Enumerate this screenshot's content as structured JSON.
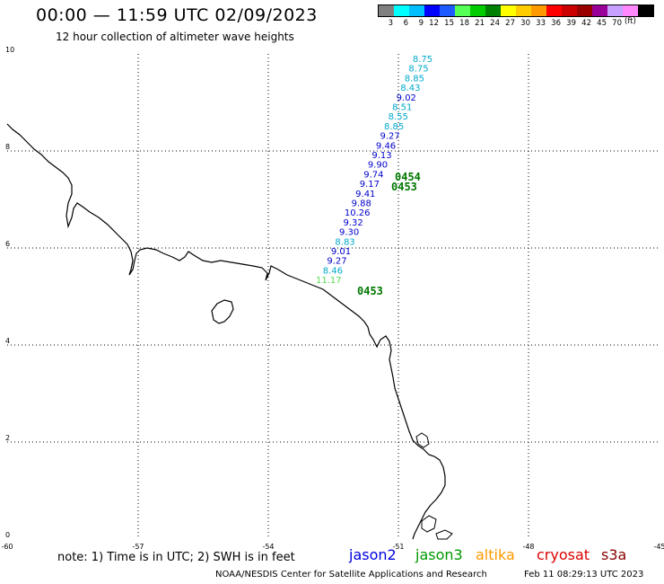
{
  "header": {
    "title": "00:00 — 11:59 UTC 02/09/2023",
    "subtitle": "12 hour collection of altimeter wave heights"
  },
  "legend": {
    "colors": [
      "#808080",
      "#00ffff",
      "#00bfff",
      "#0000ff",
      "#1e5bff",
      "#55ff55",
      "#00cc00",
      "#008000",
      "#ffff00",
      "#ffcc00",
      "#ff9900",
      "#ff0000",
      "#cc0000",
      "#990000",
      "#990099",
      "#c8a0ff",
      "#ff88ff",
      "#000000"
    ],
    "labels": [
      "3",
      "6",
      "9",
      "12",
      "15",
      "18",
      "21",
      "24",
      "27",
      "30",
      "33",
      "36",
      "39",
      "42",
      "45",
      "70"
    ],
    "unit": "(ft)"
  },
  "map": {
    "y_ticks": [
      "10",
      "8",
      "6",
      "4",
      "2",
      "0"
    ],
    "x_ticks": [
      "-60",
      "-57",
      "-54",
      "-51",
      "-48",
      "-45"
    ]
  },
  "observations": [
    {
      "value": "8.75",
      "color": "#00aacc"
    },
    {
      "value": "8.75",
      "color": "#00aacc"
    },
    {
      "value": "8.85",
      "color": "#00aacc"
    },
    {
      "value": "8.43",
      "color": "#00aacc"
    },
    {
      "value": "9.02",
      "color": "#0000cc"
    },
    {
      "value": "8.51",
      "color": "#00aacc"
    },
    {
      "value": "8.55",
      "color": "#00aacc"
    },
    {
      "value": "8.85",
      "color": "#00aacc"
    },
    {
      "value": "9.27",
      "color": "#0000cc"
    },
    {
      "value": "9.46",
      "color": "#0000cc"
    },
    {
      "value": "9.13",
      "color": "#0000cc"
    },
    {
      "value": "9.90",
      "color": "#0000cc"
    },
    {
      "value": "9.74",
      "color": "#0000cc"
    },
    {
      "value": "9.17",
      "color": "#0000cc"
    },
    {
      "value": "9.41",
      "color": "#0000cc"
    },
    {
      "value": "9.88",
      "color": "#0000cc"
    },
    {
      "value": "10.26",
      "color": "#0000cc"
    },
    {
      "value": "9.32",
      "color": "#0000cc"
    },
    {
      "value": "9.30",
      "color": "#0000cc"
    },
    {
      "value": "8.83",
      "color": "#00aacc"
    },
    {
      "value": "9.01",
      "color": "#0000cc"
    },
    {
      "value": "9.27",
      "color": "#0000cc"
    },
    {
      "value": "8.46",
      "color": "#00aacc"
    },
    {
      "value": "11.17",
      "color": "#55dd55"
    }
  ],
  "time_labels": [
    "0454",
    "0453",
    "0453"
  ],
  "footer": {
    "note": "note:  1) Time is in UTC;  2) SWH is in feet",
    "satellites": [
      {
        "name": "jason2",
        "color": "#0000dd"
      },
      {
        "name": "jason3",
        "color": "#009900"
      },
      {
        "name": "altika",
        "color": "#ff9900"
      },
      {
        "name": "cryosat",
        "color": "#dd0000"
      },
      {
        "name": "s3a",
        "color": "#880000"
      }
    ],
    "credit": "NOAA/NESDIS Center for Satellite Applications and Research",
    "timestamp": "Feb 11 08:29:13 UTC 2023"
  }
}
